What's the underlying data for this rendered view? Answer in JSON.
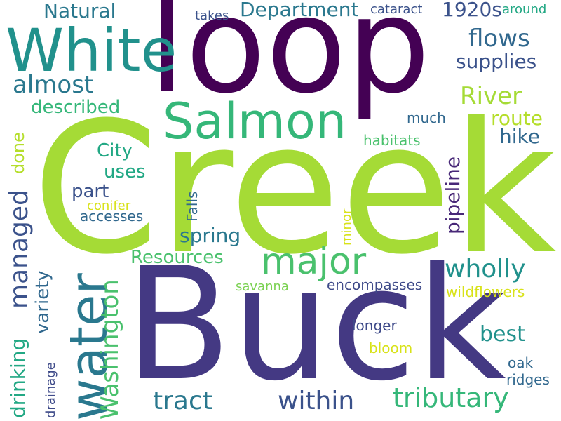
{
  "wordcloud": {
    "words": [
      {
        "text": "Creek",
        "color": "#a5db36"
      },
      {
        "text": "Buck",
        "color": "#443983"
      },
      {
        "text": "loop",
        "color": "#440154"
      },
      {
        "text": "White",
        "color": "#21918c"
      },
      {
        "text": "Salmon",
        "color": "#35b779"
      },
      {
        "text": "water",
        "color": "#2a788e"
      },
      {
        "text": "Washington",
        "color": "#4ac16d"
      },
      {
        "text": "major",
        "color": "#4ac16d"
      },
      {
        "text": "tributary",
        "color": "#35b779"
      },
      {
        "text": "wholly",
        "color": "#21918c"
      },
      {
        "text": "within",
        "color": "#3b528b"
      },
      {
        "text": "tract",
        "color": "#2a788e"
      },
      {
        "text": "River",
        "color": "#a5db36"
      },
      {
        "text": "managed",
        "color": "#3b528b"
      },
      {
        "text": "flows",
        "color": "#31688e"
      },
      {
        "text": "supplies",
        "color": "#3b528b"
      },
      {
        "text": "almost",
        "color": "#2a788e"
      },
      {
        "text": "described",
        "color": "#35b779"
      },
      {
        "text": "Natural",
        "color": "#2a788e"
      },
      {
        "text": "Department",
        "color": "#2a788e"
      },
      {
        "text": "1920s",
        "color": "#3b528b"
      },
      {
        "text": "takes",
        "color": "#3b528b"
      },
      {
        "text": "cataract",
        "color": "#3b528b"
      },
      {
        "text": "around",
        "color": "#22a884"
      },
      {
        "text": "Resources",
        "color": "#4ac16d"
      },
      {
        "text": "spring",
        "color": "#2a788e"
      },
      {
        "text": "drinking",
        "color": "#22a884"
      },
      {
        "text": "variety",
        "color": "#31688e"
      },
      {
        "text": "done",
        "color": "#b5de2b"
      },
      {
        "text": "City",
        "color": "#22a884"
      },
      {
        "text": "uses",
        "color": "#22a884"
      },
      {
        "text": "part",
        "color": "#3b528b"
      },
      {
        "text": "conifer",
        "color": "#d8e219"
      },
      {
        "text": "accesses",
        "color": "#31688e"
      },
      {
        "text": "Falls",
        "color": "#31688e"
      },
      {
        "text": "pipeline",
        "color": "#482878"
      },
      {
        "text": "route",
        "color": "#b5de2b"
      },
      {
        "text": "hike",
        "color": "#31688e"
      },
      {
        "text": "much",
        "color": "#31688e"
      },
      {
        "text": "habitats",
        "color": "#4ac16d"
      },
      {
        "text": "minor",
        "color": "#d8e219"
      },
      {
        "text": "savanna",
        "color": "#7ad151"
      },
      {
        "text": "encompasses",
        "color": "#3e4a89"
      },
      {
        "text": "wildflowers",
        "color": "#d8e219"
      },
      {
        "text": "best",
        "color": "#21918c"
      },
      {
        "text": "longer",
        "color": "#3e4a89"
      },
      {
        "text": "bloom",
        "color": "#d8e219"
      },
      {
        "text": "oak",
        "color": "#31688e"
      },
      {
        "text": "ridges",
        "color": "#31688e"
      },
      {
        "text": "drainage",
        "color": "#3e4a89"
      }
    ]
  }
}
